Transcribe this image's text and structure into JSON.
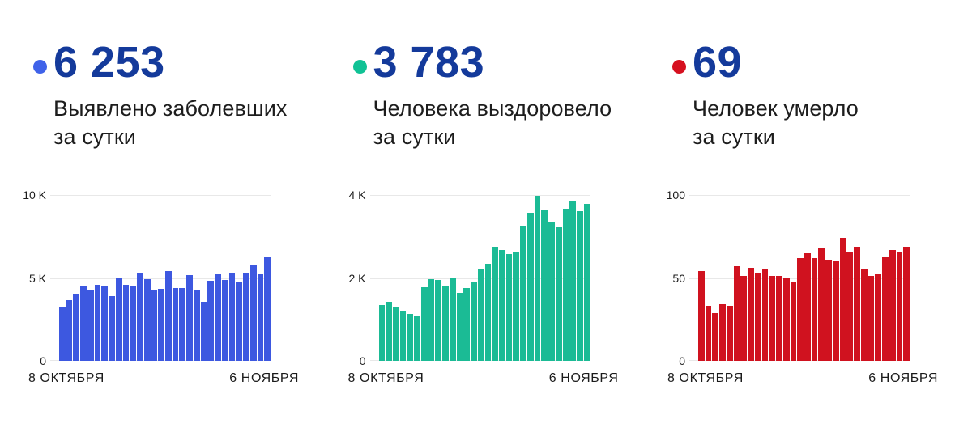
{
  "colors": {
    "value_text": "#143a9b",
    "title_text": "#1d1d1d",
    "axis_text": "#1c1c1c",
    "gridline": "#e8e8e8",
    "background": "#ffffff"
  },
  "chart_data": [
    {
      "type": "bar",
      "value": "6 253",
      "title_line1": "Выявлено заболевших",
      "title_line2": "за сутки",
      "dot_color": "#3f62e9",
      "bar_color": "#3d58e0",
      "ylim": [
        0,
        10000
      ],
      "y_ticks": [
        "10 K",
        "5 K",
        "0"
      ],
      "x_start_label": "8 ОКТЯБРЯ",
      "x_end_label": "6 НОЯБРЯ",
      "grid": true,
      "legend_position": "none",
      "values": [
        3260,
        3660,
        4050,
        4470,
        4310,
        4580,
        4520,
        3900,
        5000,
        4600,
        4550,
        5290,
        4920,
        4310,
        4360,
        5400,
        4380,
        4400,
        5190,
        4270,
        3580,
        4840,
        5240,
        4890,
        5290,
        4760,
        5320,
        5770,
        5240,
        6253
      ]
    },
    {
      "type": "bar",
      "value": "3 783",
      "title_line1": "Человека выздоровело",
      "title_line2": "за сутки",
      "dot_color": "#10c295",
      "bar_color": "#1bbb95",
      "ylim": [
        0,
        4000
      ],
      "y_ticks": [
        "4 K",
        "2 K",
        "0"
      ],
      "x_start_label": "8 ОКТЯБРЯ",
      "x_end_label": "6 НОЯБРЯ",
      "grid": true,
      "legend_position": "none",
      "values": [
        1340,
        1430,
        1300,
        1210,
        1130,
        1100,
        1770,
        1980,
        1960,
        1820,
        2000,
        1640,
        1750,
        1900,
        2200,
        2350,
        2745,
        2665,
        2580,
        2615,
        3265,
        3575,
        3980,
        3630,
        3350,
        3240,
        3675,
        3850,
        3610,
        3783
      ]
    },
    {
      "type": "bar",
      "value": "69",
      "title_line1": "Человек умерло",
      "title_line2": "за сутки",
      "dot_color": "#d6101f",
      "bar_color": "#d0121f",
      "ylim": [
        0,
        100
      ],
      "y_ticks": [
        "100",
        "50",
        "0"
      ],
      "x_start_label": "8 ОКТЯБРЯ",
      "x_end_label": "6 НОЯБРЯ",
      "grid": true,
      "legend_position": "none",
      "values": [
        54,
        33,
        29,
        34,
        33,
        57,
        51,
        56,
        53,
        55,
        51,
        51,
        50,
        48,
        62,
        65,
        62,
        68,
        61,
        60,
        74,
        66,
        69,
        55,
        51,
        52,
        63,
        67,
        66,
        69
      ]
    }
  ]
}
